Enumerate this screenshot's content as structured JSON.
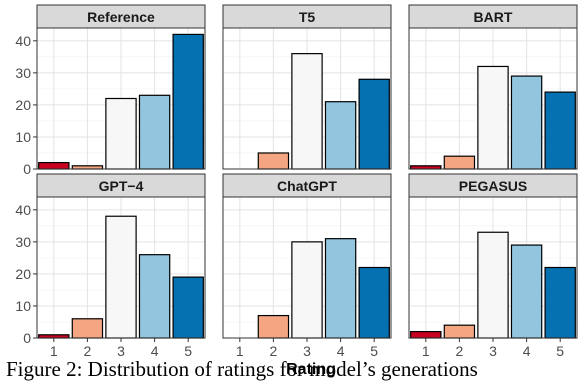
{
  "chart_data": {
    "type": "bar",
    "layout": "facet-grid-2x3",
    "categories": [
      "1",
      "2",
      "3",
      "4",
      "5"
    ],
    "xlabel": "Rating",
    "ylabel": "",
    "ylim": [
      0,
      44
    ],
    "yticks": [
      0,
      10,
      20,
      30,
      40
    ],
    "grid": true,
    "legend": "none",
    "bar_colors": [
      "#CA0020",
      "#F4A582",
      "#F7F7F7",
      "#92C5DE",
      "#0571B0"
    ],
    "panels": [
      {
        "title": "Reference",
        "values": [
          2,
          1,
          22,
          23,
          42
        ]
      },
      {
        "title": "T5",
        "values": [
          0,
          5,
          36,
          21,
          28
        ]
      },
      {
        "title": "BART",
        "values": [
          1,
          4,
          32,
          29,
          24
        ]
      },
      {
        "title": "GPT−4",
        "values": [
          1,
          6,
          38,
          26,
          19
        ]
      },
      {
        "title": "ChatGPT",
        "values": [
          0,
          7,
          30,
          31,
          22
        ]
      },
      {
        "title": "PEGASUS",
        "values": [
          2,
          4,
          33,
          29,
          22
        ]
      }
    ]
  },
  "caption": "Figure 2: Distribution of ratings for model’s generations"
}
